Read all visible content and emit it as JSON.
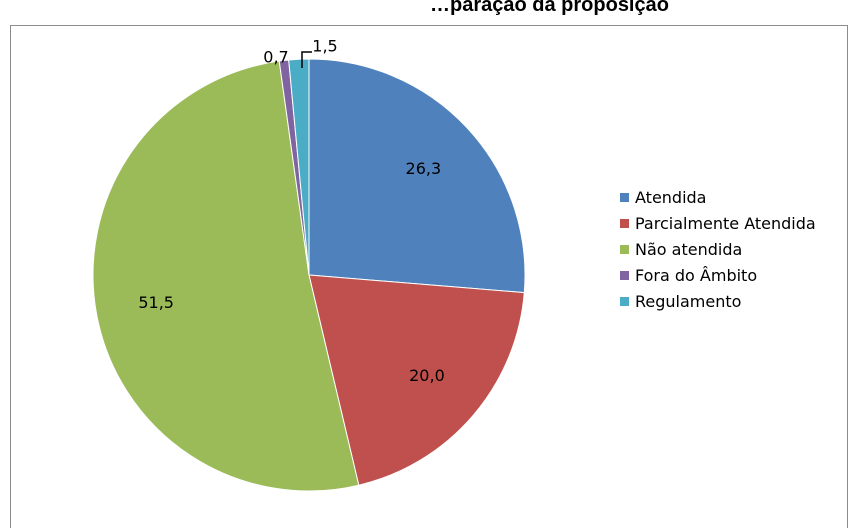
{
  "title": "…paração da proposição",
  "chart_data": {
    "type": "pie",
    "title": "…paração da proposição",
    "slices": [
      {
        "label": "Atendida",
        "value": 26.3,
        "value_label": "26,3",
        "color": "#4f81bd"
      },
      {
        "label": "Parcialmente Atendida",
        "value": 20.0,
        "value_label": "20,0",
        "color": "#c0504d"
      },
      {
        "label": "Não atendida",
        "value": 51.5,
        "value_label": "51,5",
        "color": "#9bbb59"
      },
      {
        "label": "Fora do Âmbito",
        "value": 0.7,
        "value_label": "0,7",
        "color": "#8064a2"
      },
      {
        "label": "Regulamento",
        "value": 1.5,
        "value_label": "1,5",
        "color": "#4bacc6"
      }
    ],
    "legend_position": "right"
  }
}
